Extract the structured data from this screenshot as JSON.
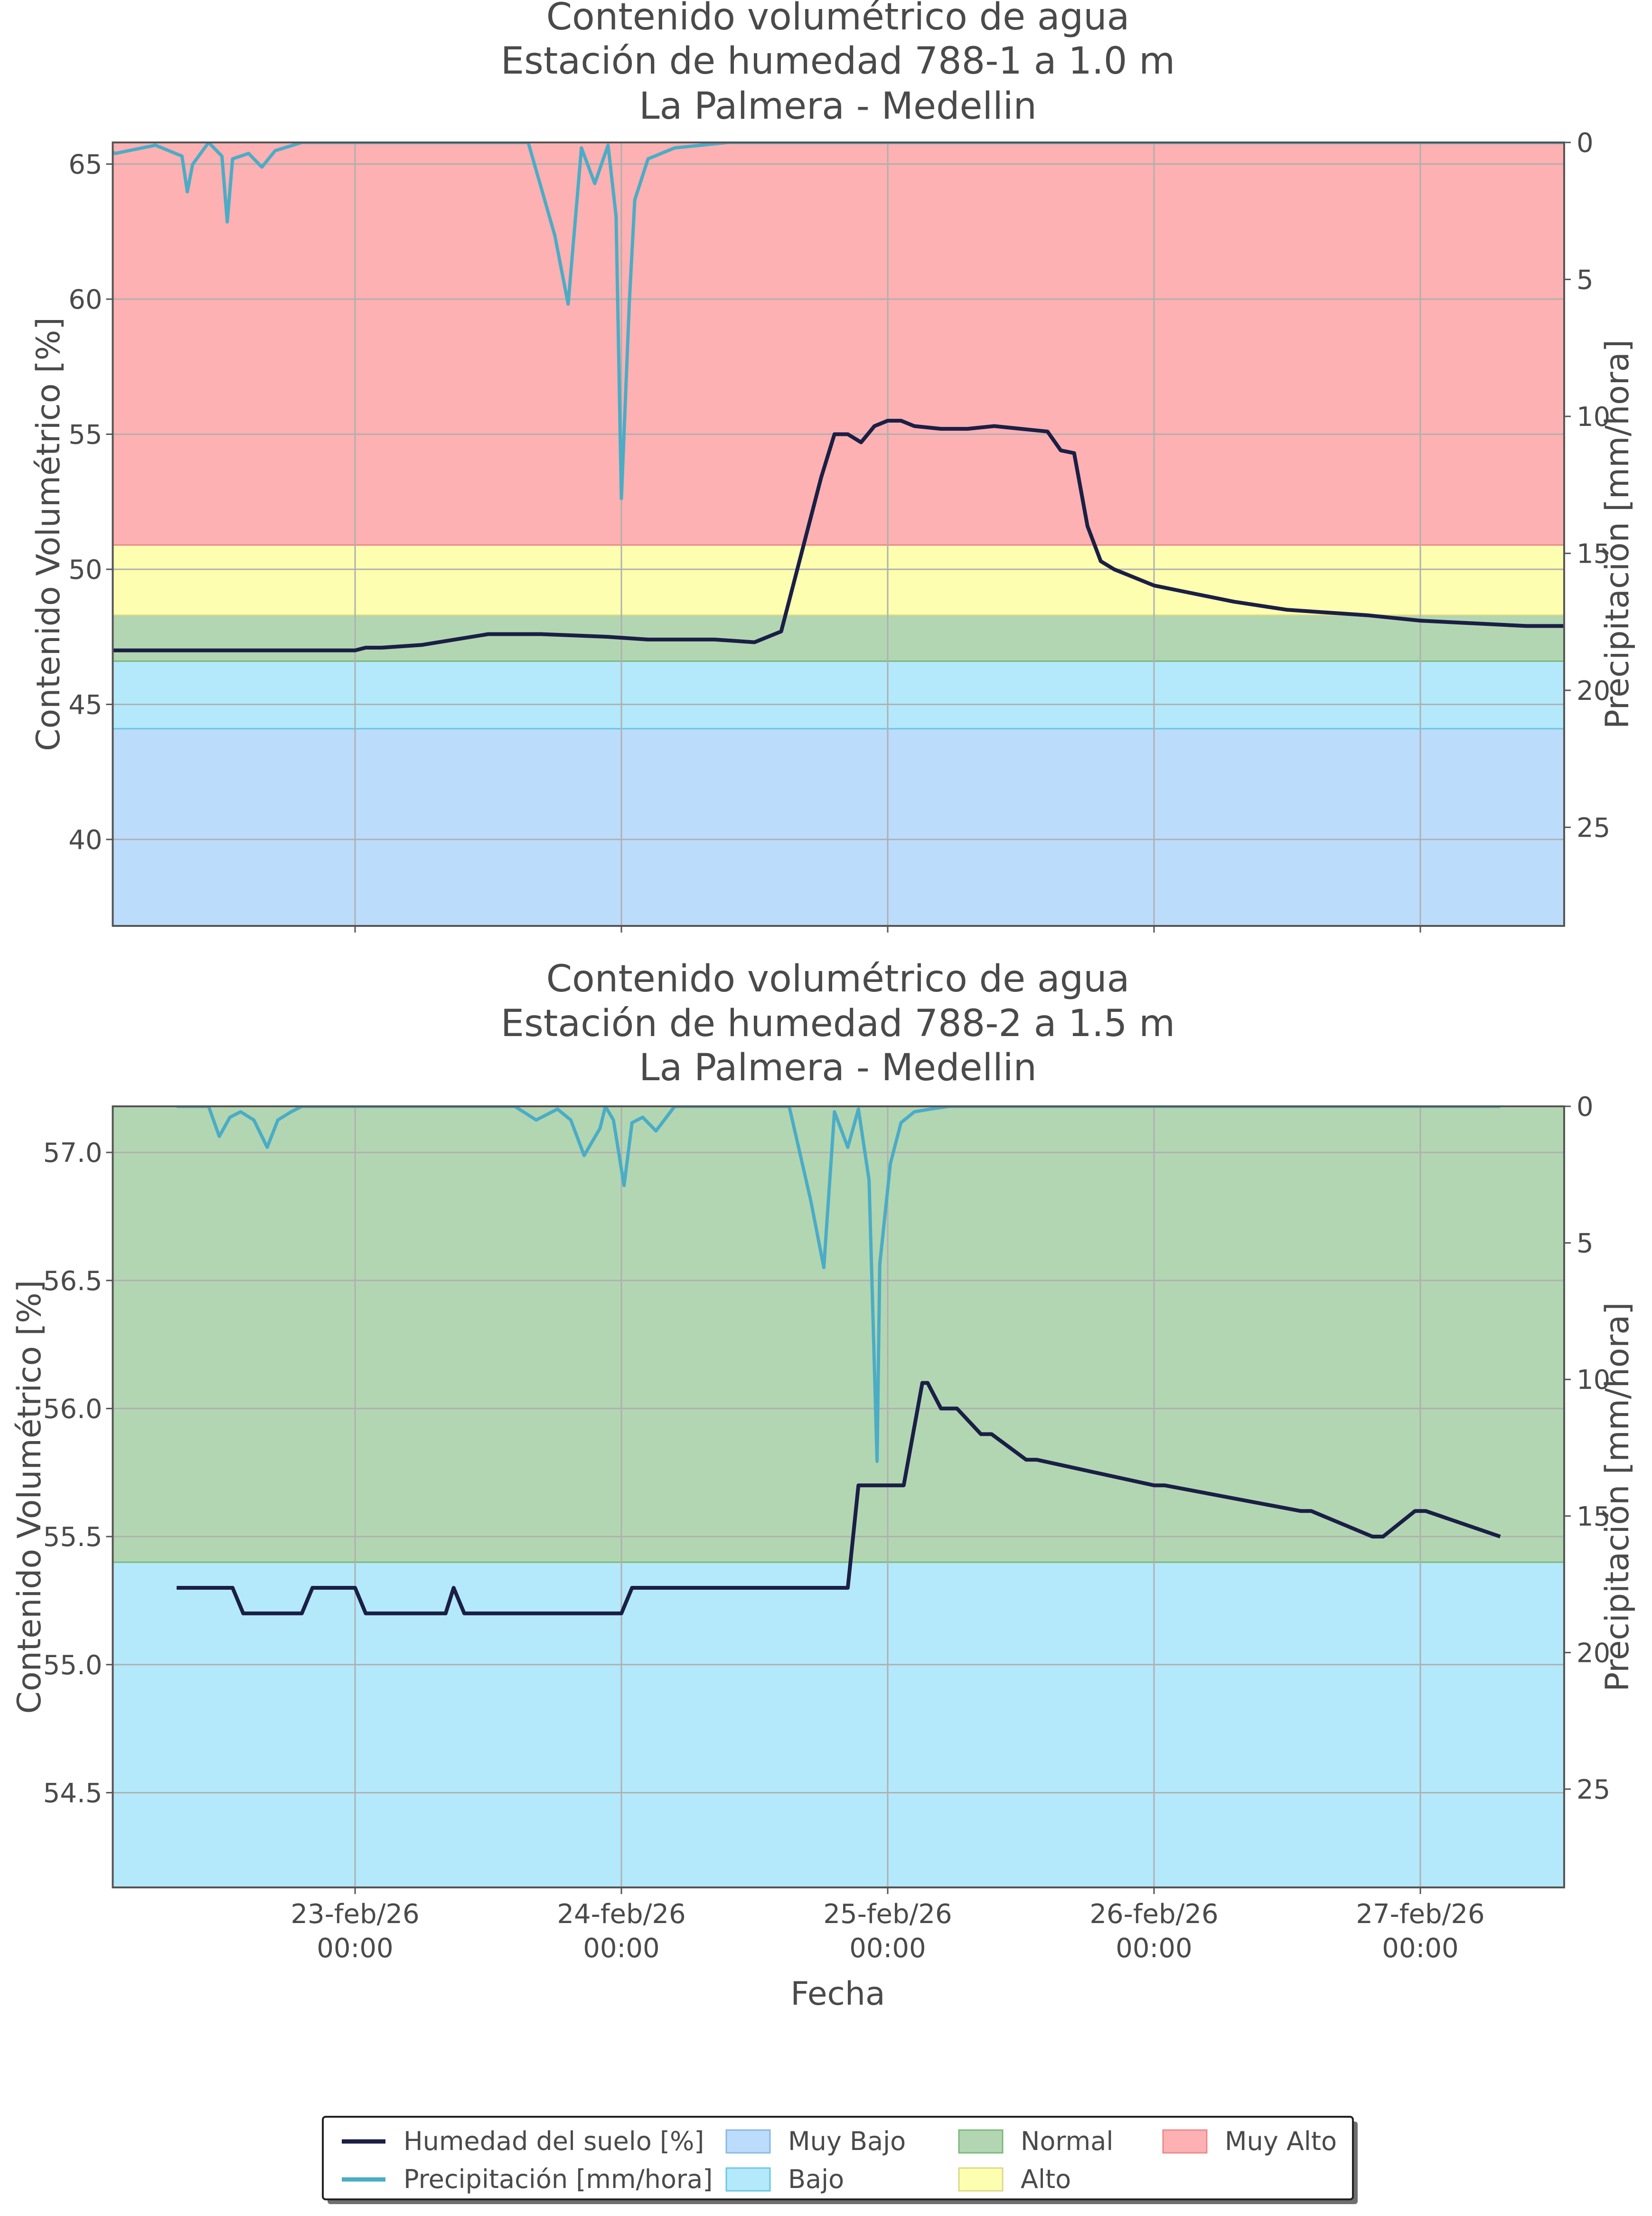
{
  "chart_data": [
    {
      "type": "line",
      "title": "Contenido volumétrico de agua",
      "subtitle": "Estación de humedad 788-1 a 1.0 m",
      "location": "La Palmera - Medellin",
      "ylabel": "Contenido Volumétrico [%]",
      "y2label": "Precipitación [mm/hora]",
      "ylim": [
        36.8,
        65.8
      ],
      "yticks": [
        40,
        45,
        50,
        55,
        60,
        65
      ],
      "y2lim": [
        0,
        28.6
      ],
      "y2ticks": [
        0,
        5,
        10,
        15,
        20,
        25
      ],
      "grid": true,
      "bands": [
        {
          "name": "Muy Bajo",
          "from": 36.8,
          "to": 44.1
        },
        {
          "name": "Bajo",
          "from": 44.1,
          "to": 46.6
        },
        {
          "name": "Normal",
          "from": 46.6,
          "to": 48.3
        },
        {
          "name": "Alto",
          "from": 48.3,
          "to": 50.9
        },
        {
          "name": "Muy Alto",
          "from": 50.9,
          "to": 65.8
        }
      ],
      "series": [
        {
          "name": "Humedad del suelo [%]",
          "x": [
            -3.0,
            -2.0,
            -1.6,
            -1.0,
            -0.5,
            0.0,
            0.04,
            0.1,
            0.25,
            0.5,
            0.7,
            0.95,
            1.1,
            1.35,
            1.5,
            1.6,
            1.75,
            1.8,
            1.85,
            1.9,
            1.95,
            2.0,
            2.05,
            2.1,
            2.2,
            2.3,
            2.4,
            2.5,
            2.6,
            2.65,
            2.7,
            2.75,
            2.8,
            2.85,
            2.9,
            3.0,
            3.1,
            3.3,
            3.5,
            3.8,
            4.0,
            4.2,
            4.4,
            4.6,
            4.8,
            4.95
          ],
          "values": [
            47.1,
            47.1,
            47.0,
            47.0,
            47.0,
            47.0,
            47.1,
            47.1,
            47.2,
            47.6,
            47.6,
            47.5,
            47.4,
            47.4,
            47.3,
            47.7,
            53.4,
            55.0,
            55.0,
            54.7,
            55.3,
            55.5,
            55.5,
            55.3,
            55.2,
            55.2,
            55.3,
            55.2,
            55.1,
            54.4,
            54.3,
            51.6,
            50.3,
            50.0,
            49.8,
            49.4,
            49.2,
            48.8,
            48.5,
            48.3,
            48.1,
            48.0,
            47.9,
            47.9,
            47.8,
            47.8
          ]
        },
        {
          "name": "Precipitación [mm/hora]",
          "x": [
            -3.0,
            -2.7,
            -2.62,
            -2.58,
            -2.55,
            -2.5,
            -2.47,
            -2.45,
            -2.4,
            -2.35,
            -2.25,
            -2.1,
            -1.0,
            -0.9,
            -0.75,
            -0.65,
            -0.63,
            -0.61,
            -0.55,
            -0.5,
            -0.48,
            -0.46,
            -0.4,
            -0.35,
            -0.3,
            -0.2,
            0.15,
            0.65,
            0.75,
            0.8,
            0.85,
            0.9,
            0.95,
            0.98,
            1.0,
            1.03,
            1.05,
            1.1,
            1.2,
            1.4,
            3.0,
            4.95
          ],
          "values": [
            0,
            0,
            0.5,
            1.1,
            0.4,
            0.2,
            0.5,
            1.5,
            0.5,
            0.2,
            0,
            0,
            0,
            0.4,
            0.1,
            0.5,
            1.8,
            0.8,
            0,
            0.5,
            2.9,
            0.6,
            0.4,
            0.9,
            0.3,
            0,
            0,
            0,
            3.4,
            5.9,
            0.2,
            1.5,
            0.1,
            2.7,
            13.0,
            5.8,
            2.1,
            0.6,
            0.2,
            0,
            0,
            0
          ]
        }
      ]
    },
    {
      "type": "line",
      "title": "Contenido volumétrico de agua",
      "subtitle": "Estación de humedad 788-2 a 1.5 m",
      "location": "La Palmera - Medellin",
      "ylabel": "Contenido Volumétrico [%]",
      "y2label": "Precipitación [mm/hora]",
      "xlabel": "Fecha",
      "ylim": [
        54.13,
        57.18
      ],
      "yticks": [
        54.5,
        55.0,
        55.5,
        56.0,
        56.5,
        57.0
      ],
      "ytick_labels": [
        "54.5",
        "55.0",
        "55.5",
        "56.0",
        "56.5",
        "57.0"
      ],
      "y2lim": [
        0,
        28.6
      ],
      "y2ticks": [
        0,
        5,
        10,
        15,
        20,
        25
      ],
      "xticks": [
        {
          "at": 0,
          "date": "23-feb/26",
          "time": "00:00"
        },
        {
          "at": 1,
          "date": "24-feb/26",
          "time": "00:00"
        },
        {
          "at": 2,
          "date": "25-feb/26",
          "time": "00:00"
        },
        {
          "at": 3,
          "date": "26-feb/26",
          "time": "00:00"
        },
        {
          "at": 4,
          "date": "27-feb/26",
          "time": "00:00"
        }
      ],
      "xlim": [
        -0.91,
        4.54
      ],
      "grid": true,
      "bands": [
        {
          "name": "Bajo",
          "from": 54.13,
          "to": 55.4
        },
        {
          "name": "Normal",
          "from": 55.4,
          "to": 57.18
        }
      ],
      "series": [
        {
          "name": "Humedad del suelo [%]",
          "x": [
            -0.67,
            -0.46,
            -0.42,
            -0.2,
            -0.16,
            0.0,
            0.04,
            0.34,
            0.37,
            0.41,
            0.45,
            1.0,
            1.04,
            1.2,
            1.26,
            1.32,
            1.35,
            1.85,
            1.89,
            1.95,
            1.97,
            2.06,
            2.13,
            2.15,
            2.2,
            2.26,
            2.35,
            2.39,
            2.52,
            2.56,
            3.0,
            3.04,
            3.55,
            3.59,
            3.82,
            3.86,
            3.98,
            4.02,
            4.3
          ],
          "values": [
            55.3,
            55.3,
            55.2,
            55.2,
            55.3,
            55.3,
            55.2,
            55.2,
            55.3,
            55.2,
            55.2,
            55.2,
            55.3,
            55.3,
            55.3,
            55.3,
            55.3,
            55.3,
            55.7,
            55.7,
            55.7,
            55.7,
            56.1,
            56.1,
            56.0,
            56.0,
            55.9,
            55.9,
            55.8,
            55.8,
            55.7,
            55.7,
            55.6,
            55.6,
            55.5,
            55.5,
            55.6,
            55.6,
            55.5
          ]
        },
        {
          "name": "Precipitación [mm/hora]",
          "x": [
            -0.67,
            -0.55,
            -0.51,
            -0.47,
            -0.43,
            -0.38,
            -0.33,
            -0.29,
            -0.24,
            -0.2,
            0.6,
            0.68,
            0.76,
            0.81,
            0.86,
            0.92,
            0.94,
            0.97,
            1.01,
            1.04,
            1.08,
            1.13,
            1.2,
            1.63,
            1.71,
            1.76,
            1.8,
            1.85,
            1.89,
            1.93,
            1.96,
            1.97,
            2.01,
            2.05,
            2.1,
            2.16,
            2.23,
            2.3,
            4.3
          ],
          "values": [
            0,
            0,
            1.1,
            0.4,
            0.2,
            0.5,
            1.5,
            0.5,
            0.2,
            0,
            0,
            0.5,
            0.1,
            0.5,
            1.8,
            0.8,
            0,
            0.5,
            2.9,
            0.6,
            0.4,
            0.9,
            0,
            0,
            3.4,
            5.9,
            0.2,
            1.5,
            0.1,
            2.7,
            13.0,
            5.8,
            2.1,
            0.6,
            0.2,
            0.1,
            0,
            0,
            0
          ]
        }
      ]
    }
  ],
  "legend": {
    "position": "bottom-center",
    "entries": [
      {
        "label": "Humedad del suelo [%]",
        "kind": "line",
        "color": "#1b1f45"
      },
      {
        "label": "Precipitación [mm/hora]",
        "kind": "line",
        "color": "#4bacc6"
      },
      {
        "label": "Muy Bajo",
        "kind": "patch",
        "color": "#bcdcfb"
      },
      {
        "label": "Bajo",
        "kind": "patch",
        "color": "#b3e9fb"
      },
      {
        "label": "Normal",
        "kind": "patch",
        "color": "#b2d6b2"
      },
      {
        "label": "Alto",
        "kind": "patch",
        "color": "#fefeb0"
      },
      {
        "label": "Muy Alto",
        "kind": "patch",
        "color": "#feb1b2"
      }
    ]
  },
  "colors": {
    "Muy Bajo": "#bcdcfb",
    "Bajo": "#b3e9fb",
    "Normal": "#b2d6b2",
    "Alto": "#fefeb0",
    "Muy Alto": "#feb1b2",
    "Muy Bajo_edge": "#8ab8e6",
    "Bajo_edge": "#6cc7e0",
    "Normal_edge": "#7cb97c",
    "Alto_edge": "#d9d98a",
    "Muy Alto_edge": "#ea8a8c",
    "moisture": "#1b1f45",
    "precipitation": "#4bacc6",
    "grid": "#b0b0b0",
    "text": "#4a4a4a",
    "axis": "#555555"
  }
}
